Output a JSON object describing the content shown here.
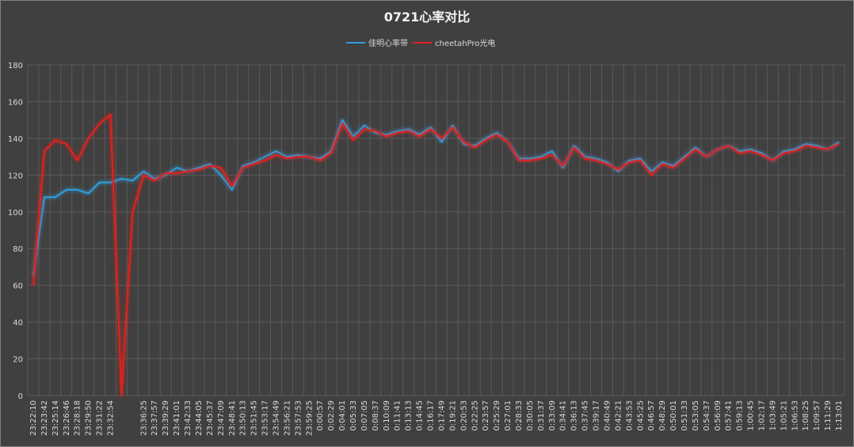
{
  "chart_data": {
    "type": "line",
    "title": "0721心率对比",
    "categories": [
      "23:22:10",
      "23:23:42",
      "23:25:14",
      "23:26:46",
      "23:28:18",
      "23:29:50",
      "23:31:22",
      "23:32:54",
      null,
      null,
      "23:36:25",
      "23:37:57",
      "23:39:29",
      "23:41:01",
      "23:42:33",
      "23:44:05",
      "23:45:37",
      "23:47:09",
      "23:48:41",
      "23:50:13",
      "23:51:45",
      "23:53:17",
      "23:54:49",
      "23:56:21",
      "23:57:53",
      "23:59:25",
      "0:00:57",
      "0:02:29",
      "0:04:01",
      "0:05:33",
      "0:07:05",
      "0:08:37",
      "0:10:09",
      "0:11:41",
      "0:13:13",
      "0:14:45",
      "0:16:17",
      "0:17:49",
      "0:19:21",
      "0:20:53",
      "0:22:25",
      "0:23:57",
      "0:25:29",
      "0:27:01",
      "0:28:33",
      "0:30:05",
      "0:31:37",
      "0:33:09",
      "0:34:41",
      "0:36:13",
      "0:37:45",
      "0:39:17",
      "0:40:49",
      "0:42:21",
      "0:43:53",
      "0:45:25",
      "0:46:57",
      "0:48:29",
      "0:50:01",
      "0:51:33",
      "0:53:05",
      "0:54:37",
      "0:56:09",
      "0:57:41",
      "0:59:13",
      "1:00:45",
      "1:02:17",
      "1:03:49",
      "1:05:21",
      "1:06:53",
      "1:08:25",
      "1:09:57",
      "1:11:29",
      "1:13:01"
    ],
    "series": [
      {
        "name": "佳明心率带",
        "color": "#2f9fdc",
        "values": [
          65,
          108,
          108,
          112,
          112,
          110,
          116,
          116,
          118,
          117,
          122,
          118,
          120,
          124,
          122,
          124,
          126,
          120,
          112,
          125,
          127,
          130,
          133,
          130,
          131,
          130,
          129,
          133,
          150,
          141,
          147,
          143,
          142,
          144,
          145,
          142,
          146,
          138,
          147,
          137,
          136,
          140,
          143,
          138,
          129,
          129,
          130,
          133,
          124,
          136,
          130,
          129,
          127,
          122,
          128,
          129,
          122,
          127,
          125,
          130,
          135,
          130,
          134,
          136,
          133,
          134,
          132,
          128,
          133,
          134,
          137,
          136,
          134,
          138
        ]
      },
      {
        "name": "cheetahPro光电",
        "color": "#e3201f",
        "values": [
          60,
          133,
          139,
          137,
          128,
          140,
          148,
          153,
          0,
          100,
          120,
          117,
          121,
          121,
          122,
          123,
          125,
          124,
          114,
          124,
          126,
          128,
          131,
          129,
          130,
          130,
          128,
          132,
          148,
          139,
          145,
          144,
          141,
          143,
          144,
          141,
          145,
          140,
          146,
          138,
          135,
          139,
          142,
          138,
          128,
          128,
          129,
          131,
          125,
          135,
          129,
          128,
          126,
          123,
          127,
          128,
          120,
          126,
          124,
          129,
          134,
          130,
          134,
          136,
          132,
          133,
          131,
          128,
          132,
          133,
          136,
          135,
          134,
          137
        ]
      }
    ],
    "ylim": [
      0,
      180
    ],
    "yticks": [
      0,
      20,
      40,
      60,
      80,
      100,
      120,
      140,
      160,
      180
    ],
    "grid": true,
    "legend": "top"
  }
}
